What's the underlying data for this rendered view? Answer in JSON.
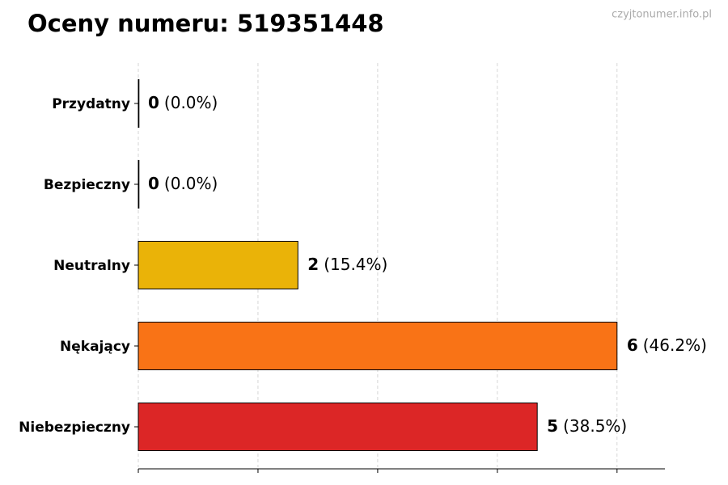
{
  "chart_data": {
    "type": "barh",
    "title": "Oceny numeru: 519351448",
    "watermark": "czyjtonumer.info.pl",
    "categories": [
      "Przydatny",
      "Bezpieczny",
      "Neutralny",
      "Nękający",
      "Niebezpieczny"
    ],
    "values": [
      0,
      0,
      2,
      6,
      5
    ],
    "share_labels": [
      "(0.0%)",
      "(0.0%)",
      "(15.4%)",
      "(46.2%)",
      "(38.5%)"
    ],
    "colors": [
      "#2e9e44",
      "#3a7dc9",
      "#eab308",
      "#f97316",
      "#dc2626"
    ],
    "xlim": [
      0,
      6.6
    ],
    "xticks": [
      0,
      1.5,
      3,
      4.5,
      6
    ],
    "grid": true
  }
}
